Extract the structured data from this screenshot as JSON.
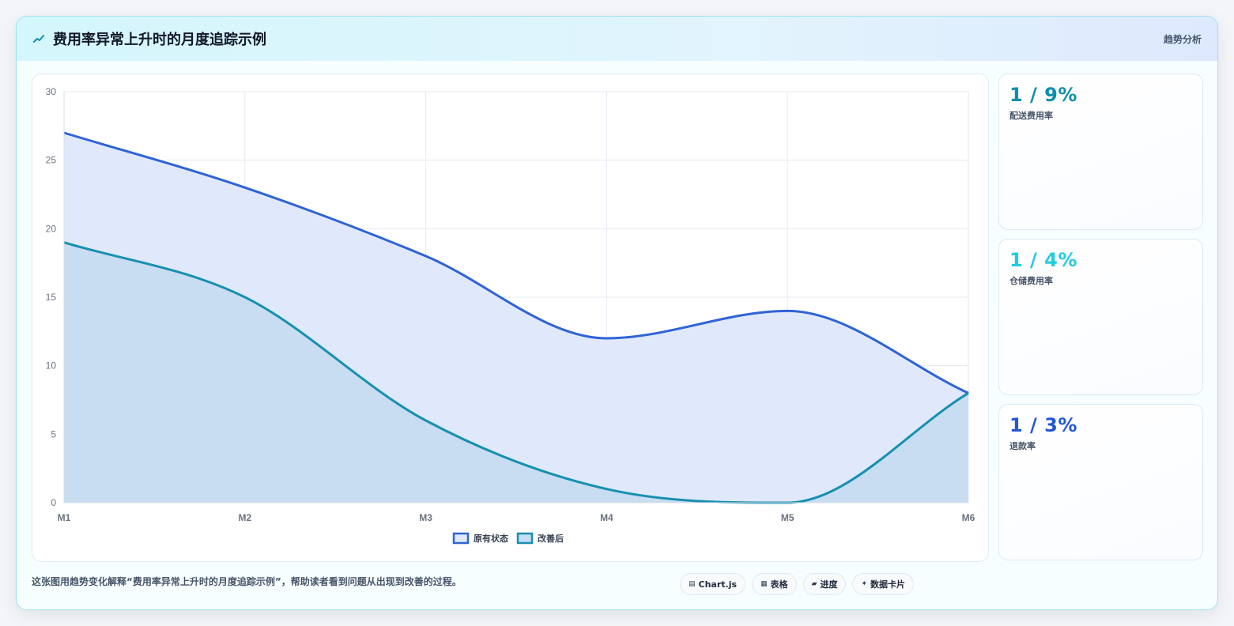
{
  "header": {
    "icon": "trend-line-icon",
    "title": "费用率异常上升时的月度追踪示例",
    "tag": "趋势分析"
  },
  "chart_data": {
    "type": "area",
    "categories": [
      "M1",
      "M2",
      "M3",
      "M4",
      "M5",
      "M6"
    ],
    "series": [
      {
        "name": "原有状态",
        "values": [
          27,
          23,
          18,
          12,
          14,
          8
        ],
        "color": "#2f63d6",
        "fill": "#e0e9fb"
      },
      {
        "name": "改善后",
        "values": [
          19,
          15,
          6,
          1,
          0,
          8
        ],
        "color": "#1790b0",
        "fill": "#c5dcf1"
      }
    ],
    "ylim": [
      0,
      30
    ],
    "yticks": [
      "0",
      "5",
      "10",
      "15",
      "20",
      "25",
      "30"
    ],
    "grid": true,
    "legend_position": "bottom"
  },
  "stats": [
    {
      "value": "1 / 9%",
      "label": "配送费用率",
      "color": "#0e8fa8"
    },
    {
      "value": "1 / 4%",
      "label": "仓储费用率",
      "color": "#22cce0"
    },
    {
      "value": "1 / 3%",
      "label": "退款率",
      "color": "#2357d4"
    }
  ],
  "footer": {
    "caption": "这张图用趋势变化解释“费用率异常上升时的月度追踪示例”，帮助读者看到问题从出现到改善的过程。",
    "chips": [
      {
        "icon": "▤",
        "label": "Chart.js"
      },
      {
        "icon": "▦",
        "label": "表格"
      },
      {
        "icon": "▰",
        "label": "进度"
      },
      {
        "icon": "✦",
        "label": "数据卡片"
      }
    ]
  }
}
